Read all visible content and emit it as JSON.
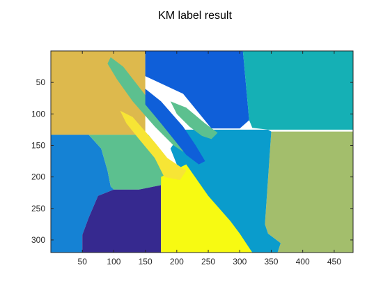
{
  "chart_data": {
    "type": "heatmap",
    "title": "KM label result",
    "xlabel": "",
    "ylabel": "",
    "xlim": [
      0,
      480
    ],
    "ylim": [
      320,
      0
    ],
    "y_reversed": true,
    "grid": false,
    "legend": "none",
    "x_ticks": [
      50,
      100,
      150,
      200,
      250,
      300,
      350,
      400,
      450
    ],
    "y_ticks": [
      50,
      100,
      150,
      200,
      250,
      300
    ],
    "colors": {
      "c1": "#36298f",
      "c2": "#0f5fd9",
      "c3": "#1582d4",
      "c4": "#0a9ccc",
      "c5": "#15b0b5",
      "c6": "#5cc08f",
      "c7": "#a3be6c",
      "c8": "#ddb94d",
      "c9": "#f7e535",
      "c10": "#f7fa12"
    },
    "regions": [
      {
        "label": "c8",
        "points": [
          [
            0,
            0
          ],
          [
            150,
            0
          ],
          [
            150,
            133
          ],
          [
            0,
            133
          ]
        ]
      },
      {
        "label": "c2",
        "points": [
          [
            150,
            0
          ],
          [
            305,
            0
          ],
          [
            315,
            110
          ],
          [
            300,
            123
          ],
          [
            255,
            123
          ],
          [
            210,
            68
          ],
          [
            150,
            40
          ]
        ]
      },
      {
        "label": "c5",
        "points": [
          [
            305,
            0
          ],
          [
            480,
            0
          ],
          [
            480,
            125
          ],
          [
            345,
            125
          ],
          [
            320,
            122
          ],
          [
            315,
            110
          ]
        ]
      },
      {
        "label": "c3",
        "points": [
          [
            0,
            133
          ],
          [
            60,
            133
          ],
          [
            80,
            155
          ],
          [
            90,
            190
          ],
          [
            95,
            215
          ],
          [
            100,
            220
          ],
          [
            75,
            230
          ],
          [
            60,
            265
          ],
          [
            50,
            292
          ],
          [
            50,
            320
          ],
          [
            0,
            320
          ]
        ]
      },
      {
        "label": "c6",
        "points": [
          [
            60,
            133
          ],
          [
            155,
            133
          ],
          [
            180,
            165
          ],
          [
            190,
            200
          ],
          [
            175,
            213
          ],
          [
            140,
            220
          ],
          [
            100,
            220
          ],
          [
            95,
            215
          ],
          [
            90,
            190
          ],
          [
            80,
            155
          ]
        ]
      },
      {
        "label": "c1",
        "points": [
          [
            100,
            220
          ],
          [
            140,
            220
          ],
          [
            175,
            213
          ],
          [
            175,
            320
          ],
          [
            50,
            320
          ],
          [
            50,
            292
          ],
          [
            60,
            265
          ],
          [
            75,
            230
          ]
        ]
      },
      {
        "label": "c7",
        "points": [
          [
            350,
            128
          ],
          [
            480,
            128
          ],
          [
            480,
            320
          ],
          [
            360,
            320
          ],
          [
            365,
            305
          ],
          [
            345,
            290
          ],
          [
            340,
            275
          ]
        ]
      },
      {
        "label": "c4",
        "points": [
          [
            210,
            125
          ],
          [
            345,
            125
          ],
          [
            350,
            128
          ],
          [
            340,
            275
          ],
          [
            345,
            290
          ],
          [
            365,
            305
          ],
          [
            360,
            320
          ],
          [
            320,
            320
          ],
          [
            305,
            300
          ],
          [
            270,
            255
          ],
          [
            240,
            230
          ],
          [
            200,
            180
          ],
          [
            190,
            155
          ]
        ]
      },
      {
        "label": "c10",
        "points": [
          [
            175,
            200
          ],
          [
            215,
            180
          ],
          [
            250,
            230
          ],
          [
            285,
            270
          ],
          [
            300,
            290
          ],
          [
            310,
            305
          ],
          [
            320,
            320
          ],
          [
            175,
            320
          ]
        ]
      },
      {
        "label": "c9",
        "points": [
          [
            110,
            95
          ],
          [
            130,
            105
          ],
          [
            165,
            145
          ],
          [
            185,
            170
          ],
          [
            200,
            180
          ],
          [
            215,
            190
          ],
          [
            205,
            205
          ],
          [
            180,
            200
          ],
          [
            165,
            170
          ],
          [
            140,
            140
          ],
          [
            120,
            115
          ]
        ]
      },
      {
        "label": "c6",
        "points": [
          [
            95,
            10
          ],
          [
            115,
            25
          ],
          [
            150,
            70
          ],
          [
            185,
            110
          ],
          [
            200,
            130
          ],
          [
            215,
            150
          ],
          [
            210,
            160
          ],
          [
            195,
            150
          ],
          [
            165,
            120
          ],
          [
            130,
            80
          ],
          [
            105,
            45
          ],
          [
            90,
            20
          ]
        ]
      },
      {
        "label": "c2",
        "points": [
          [
            150,
            60
          ],
          [
            175,
            80
          ],
          [
            210,
            120
          ],
          [
            230,
            150
          ],
          [
            245,
            175
          ],
          [
            235,
            180
          ],
          [
            215,
            165
          ],
          [
            195,
            140
          ],
          [
            175,
            115
          ],
          [
            150,
            85
          ]
        ]
      },
      {
        "label": "c6",
        "points": [
          [
            190,
            80
          ],
          [
            215,
            90
          ],
          [
            245,
            115
          ],
          [
            265,
            130
          ],
          [
            255,
            140
          ],
          [
            240,
            135
          ],
          [
            220,
            120
          ],
          [
            200,
            100
          ]
        ]
      }
    ]
  }
}
